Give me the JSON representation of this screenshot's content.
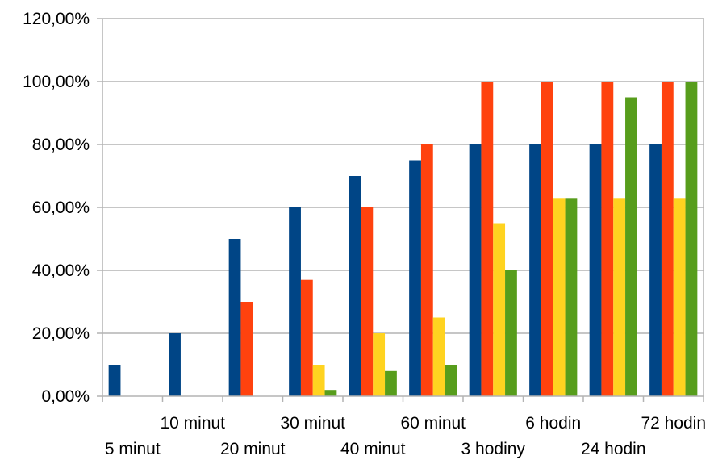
{
  "chart_data": {
    "type": "bar",
    "categories": [
      "5 minut",
      "10 minut",
      "20 minut",
      "30 minut",
      "40 minut",
      "60 minut",
      "3 hodiny",
      "6 hodin",
      "24 hodin",
      "72 hodin"
    ],
    "series": [
      {
        "color": "#004586",
        "values": [
          10,
          20,
          50,
          60,
          70,
          75,
          80,
          80,
          80,
          80
        ]
      },
      {
        "color": "#ff420e",
        "values": [
          0,
          0,
          30,
          37,
          60,
          80,
          100,
          100,
          100,
          100
        ]
      },
      {
        "color": "#ffd320",
        "values": [
          0,
          0,
          0,
          10,
          20,
          25,
          55,
          63,
          63,
          63
        ]
      },
      {
        "color": "#579d1c",
        "values": [
          0,
          0,
          0,
          2,
          8,
          10,
          40,
          63,
          95,
          100
        ]
      }
    ],
    "yticks": [
      "0,00%",
      "20,00%",
      "40,00%",
      "60,00%",
      "80,00%",
      "100,00%",
      "120,00%"
    ],
    "ylim": [
      0,
      120
    ],
    "grid": true,
    "legend": "none",
    "title": "",
    "xlabel": "",
    "ylabel": ""
  }
}
